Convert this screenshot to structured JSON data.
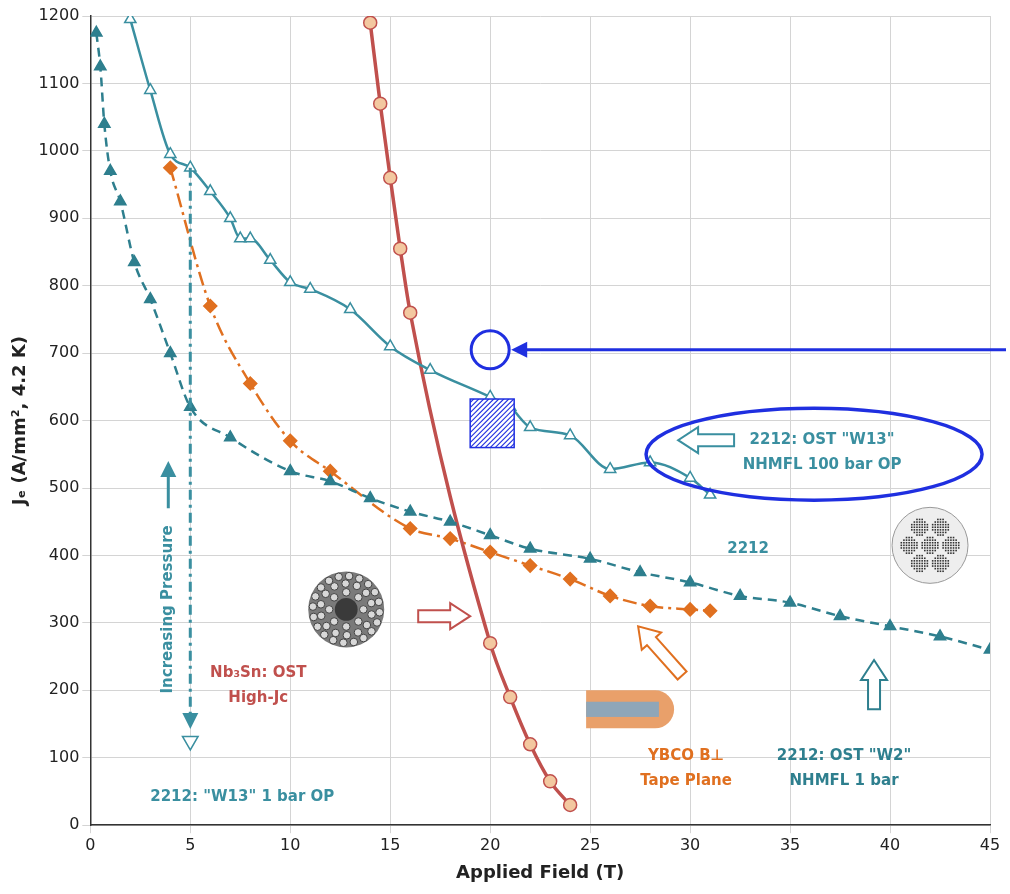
{
  "chart_data": {
    "type": "scatter",
    "xlabel": "Applied Field (T)",
    "ylabel": "Jₑ (A/mm², 4.2 K)",
    "xlim": [
      0,
      45
    ],
    "ylim": [
      0,
      1200
    ],
    "xticks": [
      0,
      5,
      10,
      15,
      20,
      25,
      30,
      35,
      40,
      45
    ],
    "yticks": [
      0,
      100,
      200,
      300,
      400,
      500,
      600,
      700,
      800,
      900,
      1000,
      1100,
      1200
    ],
    "grid": true,
    "series": [
      {
        "name": "2212: OST \"W13\" NHMFL 100 bar OP",
        "color": "#3a8fa0",
        "marker": "triangle-open",
        "line_style": "solid",
        "x": [
          2,
          3,
          4,
          5,
          6,
          7,
          7.5,
          8,
          9,
          10,
          11,
          13,
          15,
          17,
          20,
          21,
          22,
          24,
          26,
          28,
          30,
          31
        ],
        "values": [
          1195,
          1090,
          995,
          975,
          940,
          900,
          870,
          870,
          838,
          805,
          795,
          765,
          710,
          675,
          635,
          620,
          590,
          578,
          528,
          538,
          515,
          490
        ]
      },
      {
        "name": "2212: OST \"W2\" NHMFL 1 bar",
        "color": "#2e7f8e",
        "marker": "triangle",
        "line_style": "dashed",
        "x": [
          0.3,
          0.5,
          0.7,
          1,
          1.5,
          2.2,
          3,
          4,
          5,
          7,
          10,
          12,
          14,
          16,
          18,
          20,
          22,
          25,
          27.5,
          30,
          32.5,
          35,
          37.5,
          40,
          42.5,
          45
        ],
        "values": [
          1175,
          1125,
          1040,
          970,
          925,
          835,
          780,
          700,
          620,
          575,
          525,
          510,
          485,
          465,
          450,
          430,
          410,
          395,
          375,
          360,
          340,
          330,
          310,
          295,
          280,
          260
        ]
      },
      {
        "name": "Nb₃Sn: OST High-Jc",
        "color": "#c0504d",
        "marker": "circle",
        "line_style": "solid",
        "x": [
          14,
          14.5,
          15,
          15.5,
          16,
          20,
          21,
          22,
          23,
          24
        ],
        "values": [
          1190,
          1070,
          960,
          855,
          760,
          270,
          190,
          120,
          65,
          30
        ]
      },
      {
        "name": "YBCO B⊥ Tape Plane",
        "color": "#e07020",
        "marker": "diamond",
        "line_style": "dashdot",
        "x": [
          4,
          6,
          8,
          10,
          12,
          16,
          18,
          20,
          22,
          24,
          26,
          28,
          30,
          31
        ],
        "values": [
          975,
          770,
          655,
          570,
          525,
          440,
          425,
          405,
          385,
          365,
          340,
          325,
          320,
          318
        ]
      },
      {
        "name": "2212: \"W13\" 1 bar OP",
        "color": "#3a8fa0",
        "marker": "triangle-down-open",
        "line_style": "none",
        "x": [
          5
        ],
        "values": [
          125
        ]
      }
    ],
    "annotations": [
      {
        "text": "2212"
      },
      {
        "text": "Increasing Pressure"
      }
    ],
    "target": {
      "x": 20,
      "y": 705
    },
    "target_region": {
      "x": [
        19,
        21.2
      ],
      "y": [
        560,
        632
      ]
    }
  }
}
